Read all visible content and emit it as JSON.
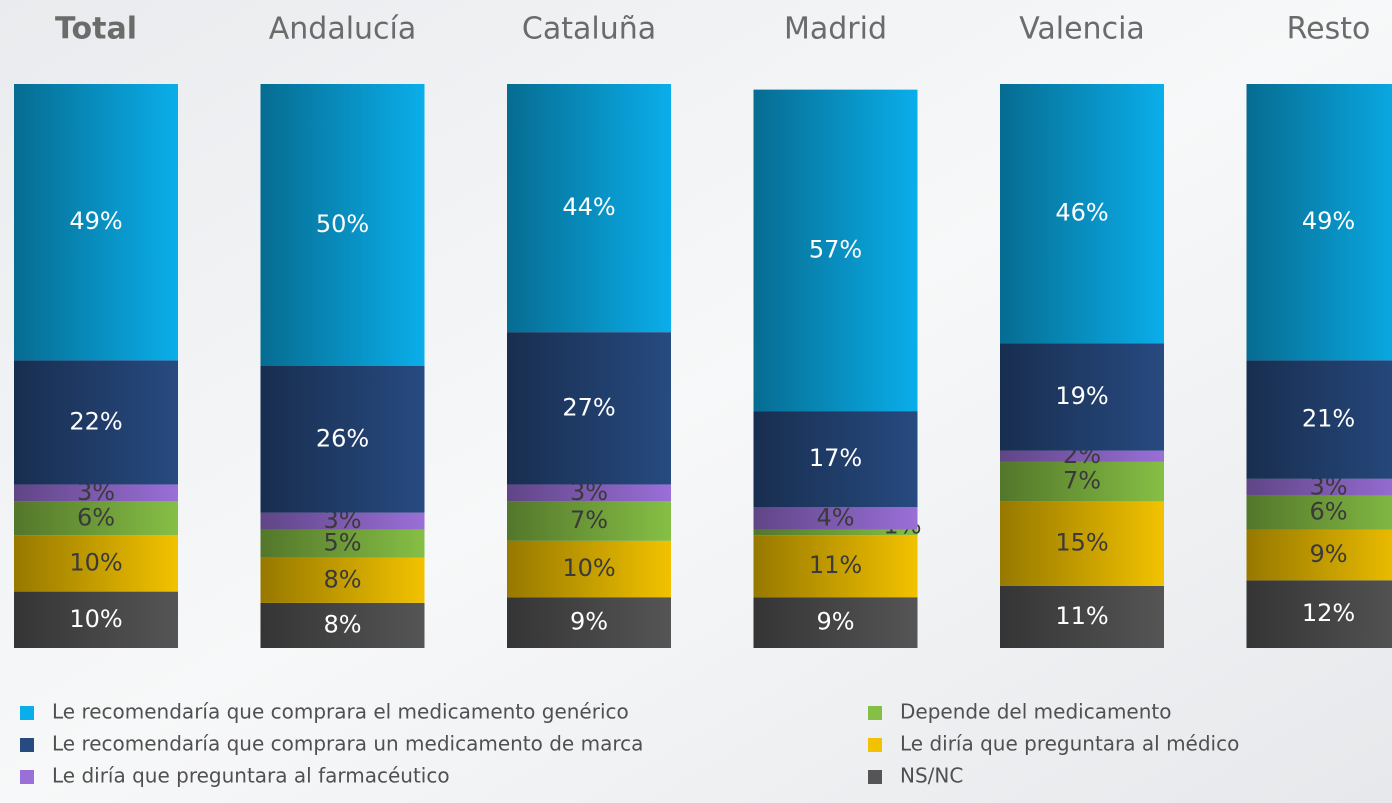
{
  "chart_data": {
    "type": "stacked_bar",
    "categories": [
      "Total",
      "Andalucía",
      "Cataluña",
      "Madrid",
      "Valencia",
      "Resto"
    ],
    "series": [
      {
        "name": "NS/NC",
        "color": "#555555",
        "values": [
          10,
          8,
          9,
          9,
          11,
          12
        ],
        "value_labels": [
          "10%",
          "8%",
          "9%",
          "9%",
          "11%",
          "12%"
        ]
      },
      {
        "name": "Le diría que preguntara al médico",
        "color": "#f2c200",
        "values": [
          10,
          8,
          10,
          11,
          15,
          9
        ],
        "value_labels": [
          "10%",
          "8%",
          "10%",
          "11%",
          "15%",
          "9%"
        ]
      },
      {
        "name": "Depende del medicamento",
        "color": "#86bf45",
        "values": [
          6,
          5,
          7,
          1,
          7,
          6
        ],
        "value_labels": [
          "6%",
          "5%",
          "7%",
          "1%",
          "7%",
          "6%"
        ]
      },
      {
        "name": "Le diría que preguntara al farmacéutico",
        "color": "#9a6fd8",
        "values": [
          3,
          3,
          3,
          4,
          2,
          3
        ],
        "value_labels": [
          "3%",
          "3%",
          "3%",
          "4%",
          "2%",
          "3%"
        ]
      },
      {
        "name": "Le recomendaría que comprara un medicamento de marca",
        "color": "#274a80",
        "values": [
          22,
          26,
          27,
          17,
          19,
          21
        ],
        "value_labels": [
          "22%",
          "26%",
          "27%",
          "17%",
          "19%",
          "21%"
        ]
      },
      {
        "name": "Le recomendaría que comprara el medicamento genérico",
        "color": "#0aaeea",
        "values": [
          49,
          50,
          44,
          57,
          46,
          49
        ],
        "value_labels": [
          "49%",
          "50%",
          "44%",
          "57%",
          "46%",
          "49%"
        ]
      }
    ]
  }
}
